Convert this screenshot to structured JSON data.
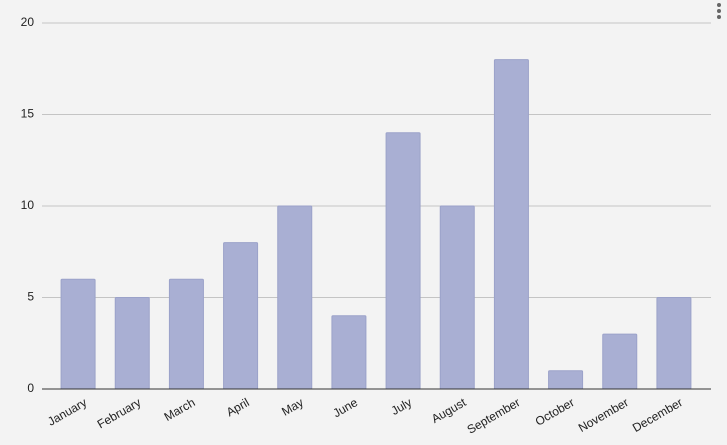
{
  "chart_data": {
    "type": "bar",
    "categories": [
      "January",
      "February",
      "March",
      "April",
      "May",
      "June",
      "July",
      "August",
      "September",
      "October",
      "November",
      "December"
    ],
    "values": [
      6,
      5,
      6,
      8,
      10,
      4,
      14,
      10,
      18,
      1,
      3,
      5
    ],
    "color": "#a9afd3",
    "ylim": [
      0,
      20
    ],
    "yticks": [
      0,
      5,
      10,
      15,
      20
    ],
    "grid": true
  }
}
